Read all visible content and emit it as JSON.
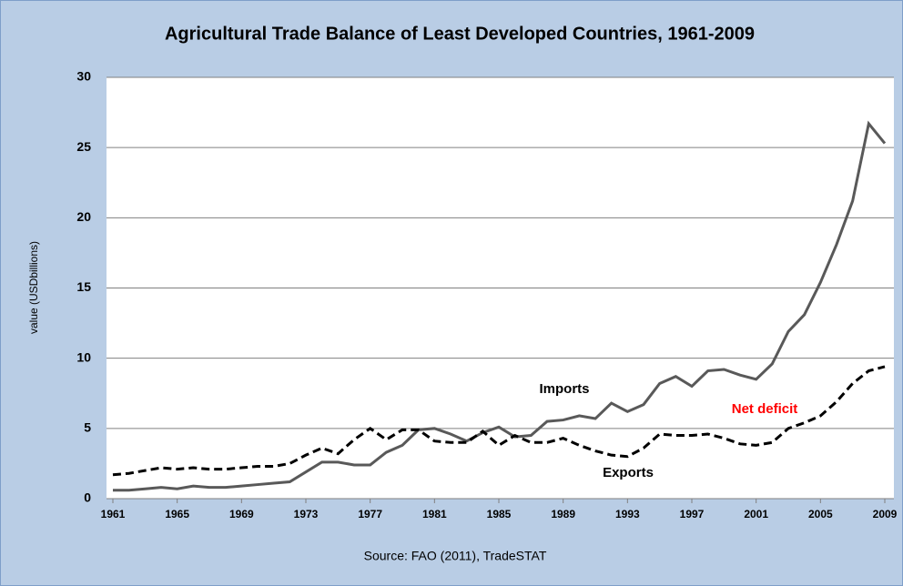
{
  "chart_data": {
    "type": "line",
    "title": "Agricultural Trade Balance of Least Developed Countries, 1961-2009",
    "y_label": "value (USDbillions)",
    "source": "Source: FAO (2011), TradeSTAT",
    "annotations": [
      "Net deficit"
    ],
    "annotation_color": "#ff0000",
    "x": [
      1961,
      1962,
      1963,
      1964,
      1965,
      1966,
      1967,
      1968,
      1969,
      1970,
      1971,
      1972,
      1973,
      1974,
      1975,
      1976,
      1977,
      1978,
      1979,
      1980,
      1981,
      1982,
      1983,
      1984,
      1985,
      1986,
      1987,
      1988,
      1989,
      1990,
      1991,
      1992,
      1993,
      1994,
      1995,
      1996,
      1997,
      1998,
      1999,
      2000,
      2001,
      2002,
      2003,
      2004,
      2005,
      2006,
      2007,
      2008,
      2009
    ],
    "series": [
      {
        "name": "Imports",
        "color": "#595959",
        "dash": "solid",
        "values": [
          0.6,
          0.6,
          0.7,
          0.8,
          0.7,
          0.9,
          0.8,
          0.8,
          0.9,
          1.0,
          1.1,
          1.2,
          1.9,
          2.6,
          2.6,
          2.4,
          2.4,
          3.3,
          3.8,
          4.9,
          5.0,
          4.6,
          4.1,
          4.7,
          5.1,
          4.4,
          4.5,
          5.5,
          5.6,
          5.9,
          5.7,
          6.8,
          6.2,
          6.7,
          8.2,
          8.7,
          8.0,
          9.1,
          9.2,
          8.8,
          8.5,
          9.6,
          11.9,
          13.1,
          15.4,
          18.1,
          21.2,
          26.7,
          25.3
        ]
      },
      {
        "name": "Exports",
        "color": "#000000",
        "dash": "dashed",
        "values": [
          1.7,
          1.8,
          2.0,
          2.2,
          2.1,
          2.2,
          2.1,
          2.1,
          2.2,
          2.3,
          2.3,
          2.5,
          3.1,
          3.6,
          3.2,
          4.2,
          5.0,
          4.2,
          4.9,
          4.9,
          4.1,
          4.0,
          4.0,
          4.8,
          3.8,
          4.5,
          4.0,
          4.0,
          4.3,
          3.8,
          3.4,
          3.1,
          3.0,
          3.6,
          4.6,
          4.5,
          4.5,
          4.6,
          4.3,
          3.9,
          3.8,
          4.0,
          5.0,
          5.4,
          5.9,
          6.9,
          8.2,
          9.1,
          9.4
        ]
      }
    ],
    "xlim": [
      1961,
      2009
    ],
    "xticks": [
      1961,
      1965,
      1969,
      1973,
      1977,
      1981,
      1985,
      1989,
      1993,
      1997,
      2001,
      2005,
      2009
    ],
    "ylim": [
      0,
      30
    ],
    "yticks": [
      0,
      5,
      10,
      15,
      20,
      25,
      30
    ],
    "grid": true
  }
}
